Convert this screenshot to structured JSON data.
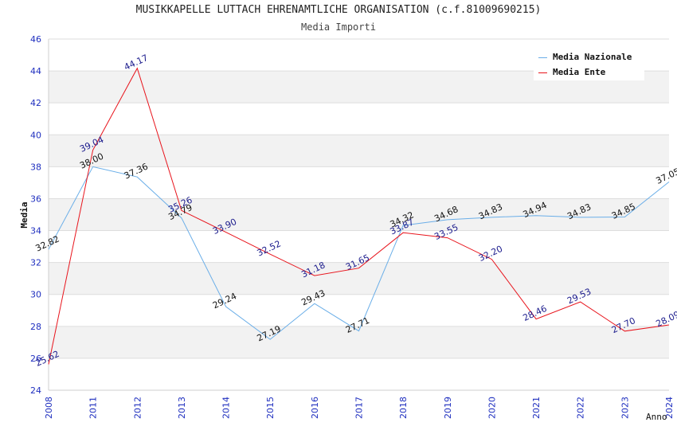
{
  "title": "MUSIKKAPELLE LUTTACH EHRENAMTLICHE ORGANISATION (c.f.81009690215)",
  "subtitle": "Media Importi",
  "chart_data": {
    "type": "line",
    "title": "MUSIKKAPELLE LUTTACH EHRENAMTLICHE ORGANISATION (c.f.81009690215)",
    "subtitle": "Media Importi",
    "xlabel": "Anno",
    "ylabel": "Media",
    "ylim": [
      24,
      46
    ],
    "yticks": [
      24,
      26,
      28,
      30,
      32,
      34,
      36,
      38,
      40,
      42,
      44,
      46
    ],
    "categories": [
      "2008",
      "2011",
      "2012",
      "2013",
      "2014",
      "2015",
      "2016",
      "2017",
      "2018",
      "2019",
      "2020",
      "2021",
      "2022",
      "2023",
      "2024"
    ],
    "grid": true,
    "legend_position": "top-right",
    "series": [
      {
        "name": "Media Nazionale",
        "color": "#6aaee8",
        "label_color": "#111111",
        "values": [
          32.82,
          38.0,
          37.36,
          34.79,
          null,
          27.19,
          29.43,
          27.71,
          34.32,
          34.68,
          34.83,
          34.94,
          34.83,
          34.85,
          37.05
        ],
        "labels": [
          "32.82",
          "38.00",
          "37.36",
          "34.79",
          "29.24",
          "27.19",
          "29.43",
          "27.71",
          "34.32",
          "34.68",
          "34.83",
          "34.94",
          "34.83",
          "34.85",
          "37.05"
        ],
        "points": [
          32.82,
          38.0,
          37.36,
          34.79,
          29.24,
          27.19,
          29.43,
          27.71,
          34.32,
          34.68,
          34.83,
          34.94,
          34.83,
          34.85,
          37.05
        ]
      },
      {
        "name": "Media Ente",
        "color": "#e8141c",
        "label_color": "#1a1a8c",
        "labels": [
          "25.62",
          "39.04",
          "44.17",
          "35.26",
          "33.90",
          "32.52",
          "31.18",
          "31.65",
          "33.87",
          "33.55",
          "32.20",
          "28.46",
          "29.53",
          "27.70",
          "28.09"
        ],
        "points": [
          25.62,
          39.04,
          44.17,
          35.26,
          33.9,
          32.52,
          31.18,
          31.65,
          33.87,
          33.55,
          32.2,
          28.46,
          29.53,
          27.7,
          28.09
        ]
      }
    ]
  }
}
